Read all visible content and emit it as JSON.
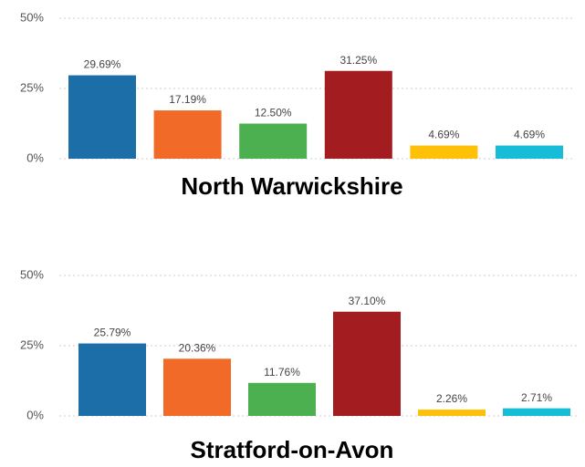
{
  "chart_data": [
    {
      "type": "bar",
      "title": "North Warwickshire",
      "values": [
        29.69,
        17.19,
        12.5,
        31.25,
        4.69,
        4.69
      ],
      "value_labels": [
        "29.69%",
        "17.19%",
        "12.50%",
        "31.25%",
        "4.69%",
        "4.69%"
      ],
      "colors": [
        "#1c6ea8",
        "#f26a27",
        "#4caf50",
        "#a31c20",
        "#ffc107",
        "#17bdd6"
      ],
      "ylim": [
        0,
        50
      ],
      "yticks": [
        {
          "value": 0,
          "label": "0%"
        },
        {
          "value": 25,
          "label": "25%"
        },
        {
          "value": 50,
          "label": "50%"
        }
      ],
      "grid": true
    },
    {
      "type": "bar",
      "title": "Stratford-on-Avon",
      "values": [
        25.79,
        20.36,
        11.76,
        37.1,
        2.26,
        2.71
      ],
      "value_labels": [
        "25.79%",
        "20.36%",
        "11.76%",
        "37.10%",
        "2.26%",
        "2.71%"
      ],
      "colors": [
        "#1c6ea8",
        "#f26a27",
        "#4caf50",
        "#a31c20",
        "#ffc107",
        "#17bdd6"
      ],
      "ylim": [
        0,
        50
      ],
      "yticks": [
        {
          "value": 0,
          "label": "0%"
        },
        {
          "value": 25,
          "label": "25%"
        },
        {
          "value": 50,
          "label": "50%"
        }
      ],
      "grid": true
    }
  ]
}
